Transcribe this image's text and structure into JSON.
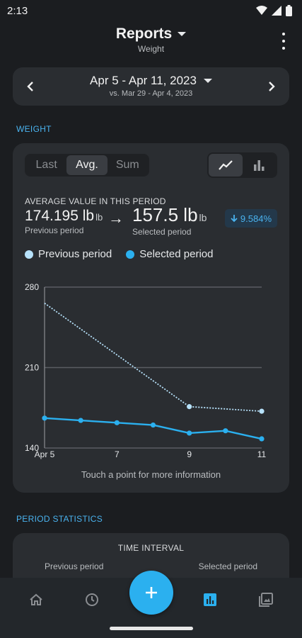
{
  "status_bar": {
    "time": "2:13"
  },
  "appbar": {
    "title": "Reports",
    "subtitle": "Weight"
  },
  "date_range": {
    "main": "Apr 5 - Apr 11, 2023",
    "comparison": "vs. Mar 29 - Apr 4, 2023"
  },
  "sections": {
    "weight": "WEIGHT",
    "period_stats": "PERIOD STATISTICS"
  },
  "aggregation_tabs": [
    {
      "label": "Last",
      "active": false
    },
    {
      "label": "Avg.",
      "active": true
    },
    {
      "label": "Sum",
      "active": false
    }
  ],
  "chart_type_toggle": {
    "selected": "line"
  },
  "summary": {
    "label": "AVERAGE VALUE IN THIS PERIOD",
    "previous_value": "174.195 lb",
    "previous_unit": "lb",
    "previous_caption": "Previous period",
    "arrow": "→",
    "selected_value": "157.5 lb",
    "selected_unit": "lb",
    "selected_caption": "Selected period",
    "delta": "9.584%"
  },
  "legend": [
    {
      "name": "Previous period",
      "color": "#b7e2fb"
    },
    {
      "name": "Selected period",
      "color": "#2bb0ef"
    }
  ],
  "chart_data": {
    "type": "line",
    "x_ticks": [
      "Apr 5",
      "7",
      "9",
      "11"
    ],
    "x_tick_days": [
      5,
      7,
      9,
      11
    ],
    "y_ticks": [
      "280",
      "210",
      "140"
    ],
    "ylim": [
      140,
      280
    ],
    "xlim": [
      5,
      11
    ],
    "grid": true,
    "series": [
      {
        "name": "Previous period",
        "style": "dotted",
        "color": "#b7e2fb",
        "x": [
          5,
          9,
          11
        ],
        "y": [
          266,
          176,
          172
        ],
        "markers": [
          false,
          true,
          true
        ]
      },
      {
        "name": "Selected period",
        "style": "solid",
        "color": "#2bb0ef",
        "x": [
          5,
          6,
          7,
          8,
          9,
          10,
          11
        ],
        "y": [
          166,
          164,
          162,
          160,
          153,
          155,
          148
        ],
        "markers": [
          true,
          true,
          true,
          true,
          true,
          true,
          true
        ]
      }
    ]
  },
  "chart_hint": "Touch a point for more information",
  "period_statistics": {
    "header": "TIME INTERVAL",
    "previous_label": "Previous period",
    "selected_label": "Selected period"
  },
  "colors": {
    "accent": "#2bb0ef",
    "background": "#1b1d20",
    "card": "#2a2d31"
  }
}
